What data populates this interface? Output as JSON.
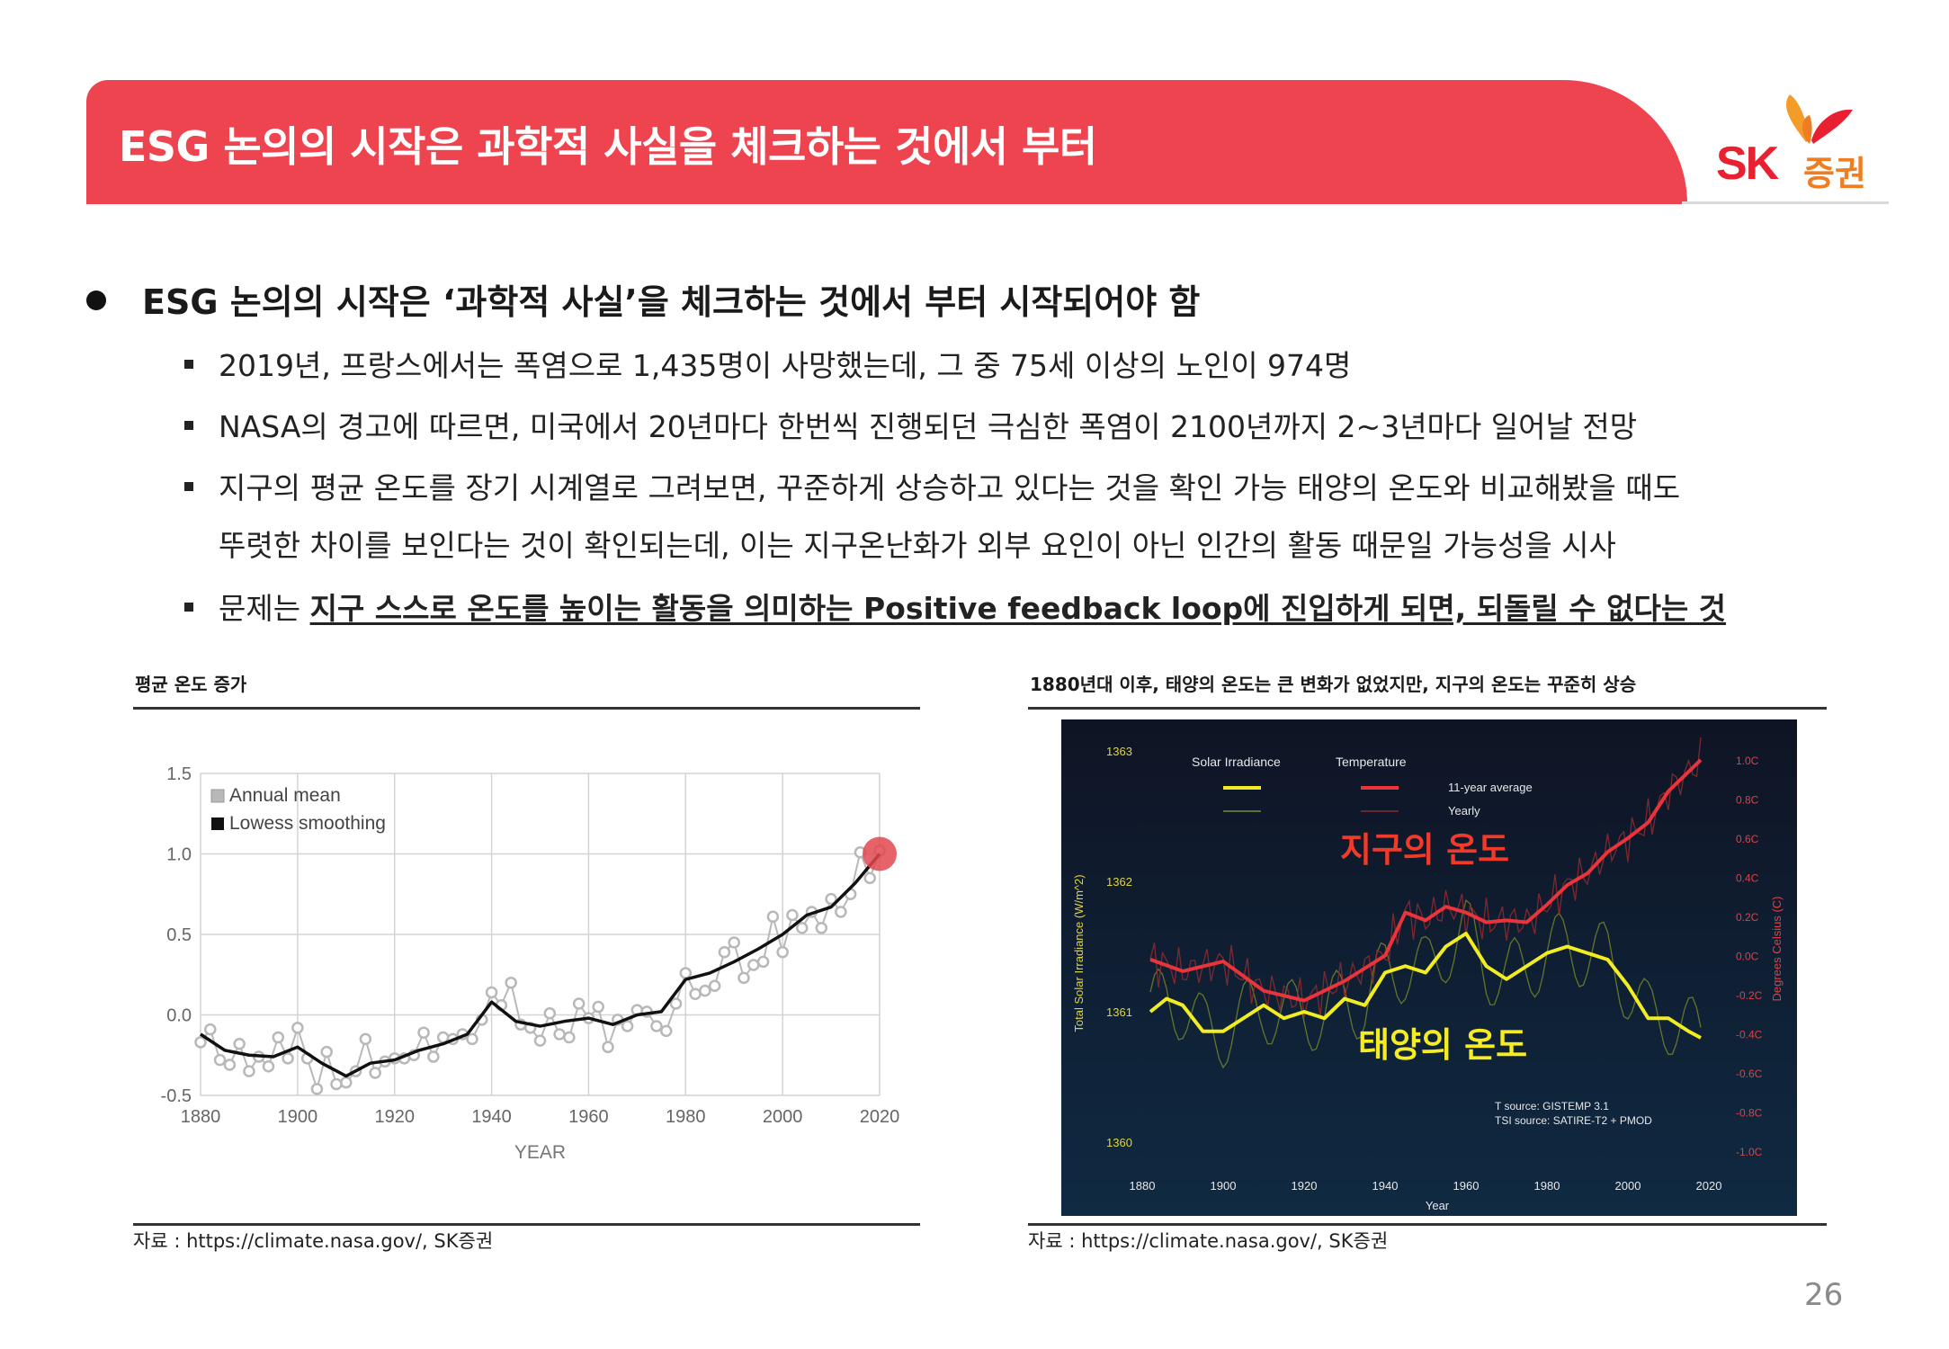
{
  "header": {
    "title": "ESG 논의의 시작은 과학적 사실을 체크하는 것에서 부터",
    "logo_sk": "SK",
    "logo_kr": "증권"
  },
  "body": {
    "main_bullet": "ESG 논의의 시작은 ‘과학적 사실’을 체크하는 것에서 부터 시작되어야 함",
    "sub1": "2019년, 프랑스에서는 폭염으로 1,435명이 사망했는데, 그 중 75세 이상의 노인이 974명",
    "sub2": "NASA의 경고에 따르면, 미국에서 20년마다 한번씩 진행되던 극심한 폭염이 2100년까지 2~3년마다 일어날 전망",
    "sub3a": "지구의 평균 온도를 장기 시계열로 그려보면, 꾸준하게 상승하고 있다는 것을 확인 가능 태양의 온도와 비교해봤을 때도",
    "sub3b": "뚜렷한 차이를 보인다는 것이 확인되는데, 이는 지구온난화가 외부 요인이 아닌 인간의 활동 때문일 가능성을 시사",
    "sub4_plain": "문제는 ",
    "sub4_bold": "지구 스스로 온도를 높이는 활동을 의미하는 Positive feedback loop에 진입하게 되면, 되돌릴 수 없다는 것"
  },
  "left_figure": {
    "caption": "평균 온도 증가",
    "source": "자료 : https://climate.nasa.gov/, SK증권"
  },
  "right_figure": {
    "caption": "1880년대 이후, 태양의 온도는 큰 변화가 없었지만, 지구의 온도는 꾸준히 상승",
    "source": "자료 : https://climate.nasa.gov/, SK증권"
  },
  "page_number": "26",
  "chart_data": [
    {
      "type": "scatter",
      "xlabel": "YEAR",
      "xlim": [
        1880,
        2020
      ],
      "ylim": [
        -0.5,
        1.5
      ],
      "x_ticks": [
        "1880",
        "1900",
        "1920",
        "1940",
        "1960",
        "1980",
        "2000",
        "2020"
      ],
      "y_ticks": [
        "1.5",
        "1.0",
        "0.5",
        "0.0",
        "-0.5"
      ],
      "legend": [
        "Annual mean",
        "Lowess smoothing"
      ],
      "legend_position": "top-left",
      "highlight_year": 2020,
      "colors": {
        "annual": "#b8b8b8",
        "smooth": "#111111",
        "highlight": "#e0484f"
      },
      "series": [
        {
          "name": "Annual mean",
          "x": [
            1880,
            1882,
            1884,
            1886,
            1888,
            1890,
            1892,
            1894,
            1896,
            1898,
            1900,
            1902,
            1904,
            1906,
            1908,
            1910,
            1912,
            1914,
            1916,
            1918,
            1920,
            1922,
            1924,
            1926,
            1928,
            1930,
            1932,
            1934,
            1936,
            1938,
            1940,
            1942,
            1944,
            1946,
            1948,
            1950,
            1952,
            1954,
            1956,
            1958,
            1960,
            1962,
            1964,
            1966,
            1968,
            1970,
            1972,
            1974,
            1976,
            1978,
            1980,
            1982,
            1984,
            1986,
            1988,
            1990,
            1992,
            1994,
            1996,
            1998,
            2000,
            2002,
            2004,
            2006,
            2008,
            2010,
            2012,
            2014,
            2016,
            2018,
            2020
          ],
          "y": [
            -0.17,
            -0.09,
            -0.28,
            -0.31,
            -0.18,
            -0.35,
            -0.26,
            -0.32,
            -0.14,
            -0.27,
            -0.08,
            -0.27,
            -0.46,
            -0.23,
            -0.43,
            -0.42,
            -0.35,
            -0.15,
            -0.36,
            -0.29,
            -0.27,
            -0.27,
            -0.25,
            -0.11,
            -0.26,
            -0.14,
            -0.15,
            -0.12,
            -0.15,
            -0.03,
            0.14,
            0.06,
            0.2,
            -0.06,
            -0.08,
            -0.16,
            0.01,
            -0.12,
            -0.14,
            0.07,
            -0.02,
            0.05,
            -0.2,
            -0.03,
            -0.07,
            0.03,
            0.02,
            -0.07,
            -0.1,
            0.07,
            0.26,
            0.13,
            0.15,
            0.18,
            0.39,
            0.45,
            0.23,
            0.31,
            0.33,
            0.61,
            0.39,
            0.62,
            0.54,
            0.64,
            0.54,
            0.72,
            0.64,
            0.75,
            1.01,
            0.85,
            1.02
          ]
        },
        {
          "name": "Lowess smoothing",
          "x": [
            1880,
            1885,
            1890,
            1895,
            1900,
            1905,
            1910,
            1915,
            1920,
            1925,
            1930,
            1935,
            1940,
            1945,
            1950,
            1955,
            1960,
            1965,
            1970,
            1975,
            1980,
            1985,
            1990,
            1995,
            2000,
            2005,
            2010,
            2015,
            2020
          ],
          "y": [
            -0.12,
            -0.22,
            -0.25,
            -0.26,
            -0.2,
            -0.3,
            -0.38,
            -0.3,
            -0.28,
            -0.22,
            -0.18,
            -0.12,
            0.08,
            -0.04,
            -0.07,
            -0.04,
            -0.02,
            -0.06,
            0.0,
            0.02,
            0.22,
            0.26,
            0.33,
            0.41,
            0.5,
            0.62,
            0.67,
            0.82,
            1.0
          ]
        }
      ]
    },
    {
      "type": "line",
      "xlabel": "Year",
      "ylabel_left": "Total Solar Irradiance (W/m^2)",
      "ylabel_right": "Degrees Celsius (C)",
      "xlim": [
        1880,
        2020
      ],
      "ylim_left": [
        1360,
        1363
      ],
      "ylim_right": [
        -1.0,
        1.0
      ],
      "x_ticks": [
        "1880",
        "1900",
        "1920",
        "1940",
        "1960",
        "1980",
        "2000",
        "2020"
      ],
      "y_ticks_left": [
        "1363",
        "1362",
        "1361",
        "1360"
      ],
      "y_ticks_right": [
        "1.0C",
        "0.8C",
        "0.6C",
        "0.4C",
        "0.2C",
        "0.0C",
        "-0.2C",
        "-0.4C",
        "-0.6C",
        "-0.8C",
        "-1.0C"
      ],
      "legend": {
        "solar": "Solar Irradiance",
        "temperature": "Temperature",
        "avg": "11-year average",
        "yearly": "Yearly"
      },
      "annotations": {
        "earth": "지구의 온도",
        "sun": "태양의 온도",
        "sources": [
          "T source: GISTEMP 3.1",
          "TSI source: SATIRE-T2 + PMOD"
        ]
      },
      "colors": {
        "bg_top": "#0f1424",
        "bg_bottom": "#0f2a42",
        "solar": "#f2ec22",
        "temp": "#e8343a",
        "earth_label": "#f03a2a",
        "sun_label": "#f5ec22",
        "axis_text": "#e8e8e8",
        "right_axis": "#e04040",
        "left_axis": "#e0d43a"
      },
      "series": [
        {
          "name": "Temperature",
          "x": [
            1882,
            1890,
            1900,
            1910,
            1920,
            1930,
            1940,
            1945,
            1950,
            1955,
            1960,
            1965,
            1970,
            1975,
            1980,
            1985,
            1990,
            1995,
            2000,
            2005,
            2010,
            2015,
            2018
          ],
          "y": [
            -0.02,
            -0.08,
            -0.03,
            -0.18,
            -0.23,
            -0.13,
            0.0,
            0.22,
            0.18,
            0.25,
            0.22,
            0.17,
            0.18,
            0.17,
            0.26,
            0.36,
            0.42,
            0.53,
            0.6,
            0.68,
            0.84,
            0.94,
            1.0
          ]
        },
        {
          "name": "Solar Irradiance",
          "x": [
            1882,
            1886,
            1890,
            1895,
            1900,
            1905,
            1910,
            1915,
            1920,
            1925,
            1930,
            1935,
            1940,
            1945,
            1950,
            1955,
            1960,
            1965,
            1970,
            1975,
            1980,
            1985,
            1990,
            1995,
            2000,
            2005,
            2010,
            2015,
            2018
          ],
          "y": [
            1361.0,
            1361.1,
            1361.05,
            1360.85,
            1360.85,
            1360.95,
            1361.05,
            1360.95,
            1361.0,
            1360.95,
            1361.1,
            1361.05,
            1361.3,
            1361.35,
            1361.3,
            1361.5,
            1361.6,
            1361.35,
            1361.25,
            1361.35,
            1361.45,
            1361.5,
            1361.45,
            1361.4,
            1361.2,
            1360.95,
            1360.95,
            1360.85,
            1360.8
          ]
        }
      ]
    }
  ]
}
